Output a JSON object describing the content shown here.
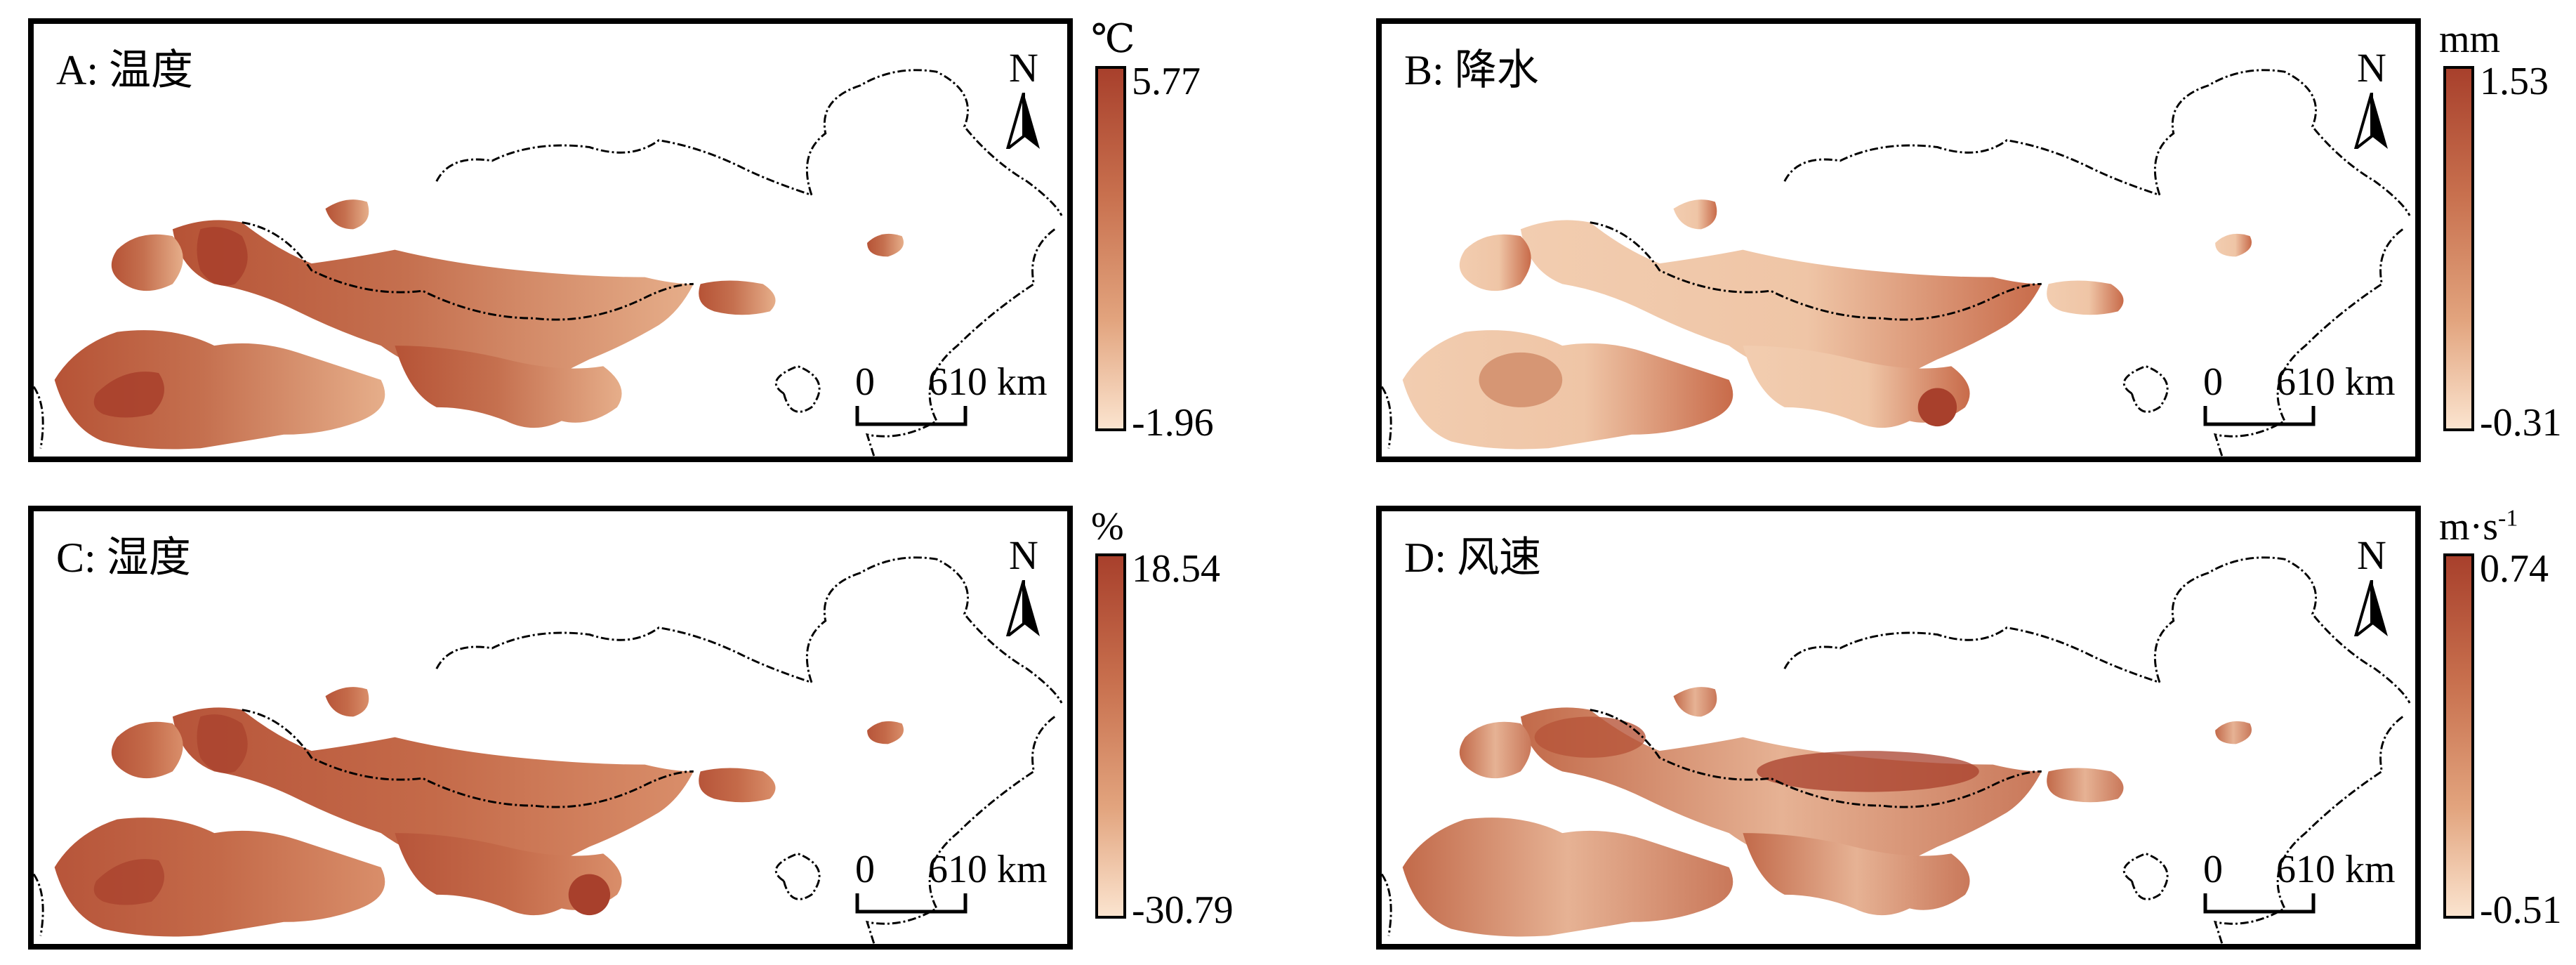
{
  "colors": {
    "high": "#a8402c",
    "mid": "#c8704e",
    "low_mid": "#e2a47e",
    "low": "#fbe4cf",
    "frame": "#000000"
  },
  "icons": {
    "north_arrow": "north-arrow-icon"
  },
  "panels": [
    {
      "title": "A: 温度",
      "north_label": "N",
      "scale_zero": "0",
      "scale_distance": "610 km",
      "unit": "℃",
      "unit_sup": "",
      "max": "5.77",
      "min": "-1.96"
    },
    {
      "title": "B: 降水",
      "north_label": "N",
      "scale_zero": "0",
      "scale_distance": "610 km",
      "unit": "mm",
      "unit_sup": "",
      "max": "1.53",
      "min": "-0.31"
    },
    {
      "title": "C: 湿度",
      "north_label": "N",
      "scale_zero": "0",
      "scale_distance": "610 km",
      "unit": "%",
      "unit_sup": "",
      "max": "18.54",
      "min": "-30.79"
    },
    {
      "title": "D: 风速",
      "north_label": "N",
      "scale_zero": "0",
      "scale_distance": "610 km",
      "unit": "m·s",
      "unit_sup": "-1",
      "max": "0.74",
      "min": "-0.51"
    }
  ]
}
